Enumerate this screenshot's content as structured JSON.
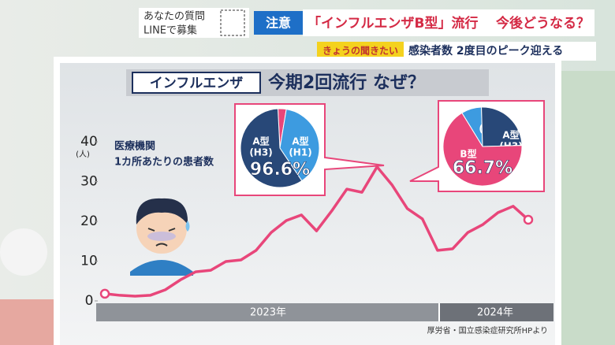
{
  "banner": {
    "question": [
      "あなたの質問",
      "LINEで募集"
    ],
    "tag": "注意",
    "headline": "「インフルエンザB型」流行",
    "question_headline": "今後どうなる？",
    "corner": "きょうの聞きたい",
    "subheadline": "感染者数 2度目のピーク迎える"
  },
  "chart_data": [
    {
      "type": "line",
      "title_box": "インフルエンザ",
      "title": "今期2回流行 なぜ？",
      "y_unit": "(人)",
      "annotation": [
        "医療機関",
        "1カ所あたりの患者数"
      ],
      "categories": [
        null,
        null,
        null,
        null,
        null,
        null,
        null,
        null,
        null,
        null,
        null,
        null,
        null,
        null,
        null,
        null,
        null,
        null,
        null,
        null,
        null,
        null,
        null,
        null,
        null,
        null,
        null,
        null,
        null
      ],
      "series": [
        {
          "name": "患者数",
          "color": "#e8467a",
          "values": [
            1.8,
            1.4,
            1.2,
            1.4,
            2.8,
            5.3,
            7.3,
            7.7,
            9.9,
            10.3,
            12.7,
            17.2,
            20.2,
            21.6,
            17.6,
            22.6,
            28.1,
            27.3,
            33.7,
            29.1,
            23.2,
            20.6,
            12.7,
            13.1,
            17.2,
            19.2,
            22.2,
            23.8,
            20.4
          ]
        }
      ],
      "ylim": [
        0,
        40
      ],
      "yticks": [
        0,
        10,
        20,
        30,
        40
      ],
      "x_period_labels": [
        "2023年",
        "2024年"
      ],
      "source": "厚労省・国立感染症研究所HPより"
    },
    {
      "type": "pie",
      "categories": [
        [
          "B型"
        ],
        [
          "A型",
          "(H1)"
        ],
        [
          "A型",
          "(H3)"
        ]
      ],
      "values": [
        3.4,
        38,
        58.6
      ],
      "colors": [
        "#e8467a",
        "#3d9be0",
        "#284878"
      ],
      "label": "96.6%"
    },
    {
      "type": "pie",
      "categories": [
        [
          "A型",
          "(H1)"
        ],
        [
          "A型",
          "(H3)"
        ],
        [
          "B型"
        ]
      ],
      "values": [
        8.3,
        25,
        66.7
      ],
      "colors": [
        "#3d9be0",
        "#284878",
        "#e8467a"
      ],
      "label": "66.7%"
    }
  ]
}
